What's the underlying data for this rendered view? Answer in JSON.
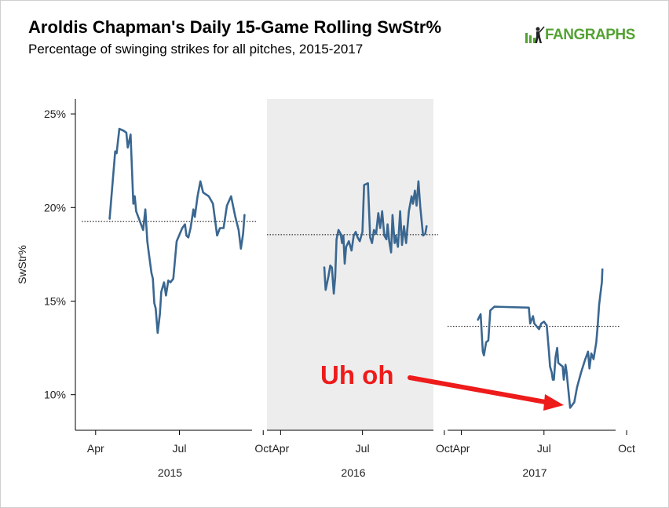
{
  "header": {
    "title": "Aroldis Chapman's Daily 15-Game Rolling SwStr%",
    "subtitle": "Percentage of swinging strikes for all pitches, 2015-2017",
    "logo_text": "FANGRAPHS"
  },
  "colors": {
    "line": "#3a6791",
    "shade": "#ededed",
    "annotation": "#ee1b1b",
    "brand": "#54a234"
  },
  "chart_data": {
    "type": "line",
    "ylabel": "SwStr%",
    "ylim": [
      8.1,
      25.8
    ],
    "yticks": [
      10,
      15,
      20,
      25
    ],
    "ytick_labels": [
      "10%",
      "15%",
      "20%",
      "25%"
    ],
    "xtick_labels": [
      "Apr",
      "Jul",
      "Oct"
    ],
    "annotation": "Uh oh",
    "panels": [
      {
        "season": "2015",
        "shaded": false,
        "average": 19.25,
        "series": [
          {
            "month": 4.5,
            "value": 19.4
          },
          {
            "month": 4.7,
            "value": 23.0
          },
          {
            "month": 4.75,
            "value": 22.9
          },
          {
            "month": 4.85,
            "value": 24.2
          },
          {
            "month": 5.0,
            "value": 24.1
          },
          {
            "month": 5.1,
            "value": 24.0
          },
          {
            "month": 5.15,
            "value": 23.2
          },
          {
            "month": 5.25,
            "value": 23.9
          },
          {
            "month": 5.35,
            "value": 20.2
          },
          {
            "month": 5.4,
            "value": 20.6
          },
          {
            "month": 5.45,
            "value": 19.8
          },
          {
            "month": 5.7,
            "value": 18.8
          },
          {
            "month": 5.78,
            "value": 19.9
          },
          {
            "month": 5.85,
            "value": 18.2
          },
          {
            "month": 5.9,
            "value": 17.6
          },
          {
            "month": 6.0,
            "value": 16.5
          },
          {
            "month": 6.05,
            "value": 16.2
          },
          {
            "month": 6.1,
            "value": 14.9
          },
          {
            "month": 6.15,
            "value": 14.6
          },
          {
            "month": 6.22,
            "value": 13.3
          },
          {
            "month": 6.3,
            "value": 14.3
          },
          {
            "month": 6.35,
            "value": 15.5
          },
          {
            "month": 6.45,
            "value": 16.0
          },
          {
            "month": 6.52,
            "value": 15.3
          },
          {
            "month": 6.6,
            "value": 16.1
          },
          {
            "month": 6.68,
            "value": 16.0
          },
          {
            "month": 6.78,
            "value": 16.2
          },
          {
            "month": 6.9,
            "value": 18.2
          },
          {
            "month": 7.1,
            "value": 18.9
          },
          {
            "month": 7.2,
            "value": 19.1
          },
          {
            "month": 7.25,
            "value": 18.5
          },
          {
            "month": 7.32,
            "value": 18.4
          },
          {
            "month": 7.4,
            "value": 18.9
          },
          {
            "month": 7.5,
            "value": 19.9
          },
          {
            "month": 7.55,
            "value": 19.5
          },
          {
            "month": 7.65,
            "value": 20.6
          },
          {
            "month": 7.75,
            "value": 21.4
          },
          {
            "month": 7.85,
            "value": 20.8
          },
          {
            "month": 8.05,
            "value": 20.6
          },
          {
            "month": 8.2,
            "value": 20.2
          },
          {
            "month": 8.35,
            "value": 18.5
          },
          {
            "month": 8.45,
            "value": 18.9
          },
          {
            "month": 8.58,
            "value": 18.9
          },
          {
            "month": 8.7,
            "value": 20.1
          },
          {
            "month": 8.85,
            "value": 20.6
          },
          {
            "month": 9.0,
            "value": 19.5
          },
          {
            "month": 9.12,
            "value": 18.8
          },
          {
            "month": 9.2,
            "value": 17.8
          },
          {
            "month": 9.28,
            "value": 18.6
          },
          {
            "month": 9.33,
            "value": 19.6
          }
        ]
      },
      {
        "season": "2016",
        "shaded": true,
        "average": 18.55,
        "series": [
          {
            "month": 5.6,
            "value": 16.8
          },
          {
            "month": 5.65,
            "value": 15.6
          },
          {
            "month": 5.75,
            "value": 16.3
          },
          {
            "month": 5.82,
            "value": 16.9
          },
          {
            "month": 5.88,
            "value": 16.8
          },
          {
            "month": 5.95,
            "value": 15.4
          },
          {
            "month": 6.0,
            "value": 16.3
          },
          {
            "month": 6.05,
            "value": 18.3
          },
          {
            "month": 6.12,
            "value": 18.8
          },
          {
            "month": 6.2,
            "value": 18.6
          },
          {
            "month": 6.25,
            "value": 18.1
          },
          {
            "month": 6.3,
            "value": 18.5
          },
          {
            "month": 6.35,
            "value": 17.0
          },
          {
            "month": 6.4,
            "value": 17.9
          },
          {
            "month": 6.5,
            "value": 18.2
          },
          {
            "month": 6.6,
            "value": 17.7
          },
          {
            "month": 6.68,
            "value": 18.5
          },
          {
            "month": 6.75,
            "value": 18.7
          },
          {
            "month": 6.82,
            "value": 18.4
          },
          {
            "month": 6.9,
            "value": 18.2
          },
          {
            "month": 7.0,
            "value": 18.7
          },
          {
            "month": 7.06,
            "value": 21.2
          },
          {
            "month": 7.2,
            "value": 21.3
          },
          {
            "month": 7.28,
            "value": 18.4
          },
          {
            "month": 7.35,
            "value": 18.1
          },
          {
            "month": 7.42,
            "value": 18.8
          },
          {
            "month": 7.5,
            "value": 18.6
          },
          {
            "month": 7.58,
            "value": 19.7
          },
          {
            "month": 7.65,
            "value": 18.9
          },
          {
            "month": 7.72,
            "value": 19.8
          },
          {
            "month": 7.8,
            "value": 18.5
          },
          {
            "month": 7.88,
            "value": 18.3
          },
          {
            "month": 7.92,
            "value": 19.1
          },
          {
            "month": 7.98,
            "value": 18.2
          },
          {
            "month": 8.05,
            "value": 17.6
          },
          {
            "month": 8.1,
            "value": 19.6
          },
          {
            "month": 8.18,
            "value": 18.1
          },
          {
            "month": 8.22,
            "value": 18.5
          },
          {
            "month": 8.3,
            "value": 17.9
          },
          {
            "month": 8.38,
            "value": 19.8
          },
          {
            "month": 8.45,
            "value": 18.0
          },
          {
            "month": 8.52,
            "value": 19.0
          },
          {
            "month": 8.6,
            "value": 18.1
          },
          {
            "month": 8.7,
            "value": 19.8
          },
          {
            "month": 8.8,
            "value": 20.6
          },
          {
            "month": 8.85,
            "value": 20.2
          },
          {
            "month": 8.92,
            "value": 20.9
          },
          {
            "month": 8.98,
            "value": 20.1
          },
          {
            "month": 9.05,
            "value": 21.4
          },
          {
            "month": 9.12,
            "value": 20.0
          },
          {
            "month": 9.22,
            "value": 18.5
          },
          {
            "month": 9.3,
            "value": 18.6
          },
          {
            "month": 9.35,
            "value": 19.0
          }
        ]
      },
      {
        "season": "2017",
        "shaded": false,
        "average": 13.65,
        "series": [
          {
            "month": 4.6,
            "value": 14.0
          },
          {
            "month": 4.7,
            "value": 14.3
          },
          {
            "month": 4.78,
            "value": 12.3
          },
          {
            "month": 4.82,
            "value": 12.1
          },
          {
            "month": 4.9,
            "value": 12.8
          },
          {
            "month": 4.98,
            "value": 12.9
          },
          {
            "month": 5.05,
            "value": 14.5
          },
          {
            "month": 5.2,
            "value": 14.7
          },
          {
            "month": 6.45,
            "value": 14.65
          },
          {
            "month": 6.5,
            "value": 13.8
          },
          {
            "month": 6.6,
            "value": 14.2
          },
          {
            "month": 6.65,
            "value": 13.8
          },
          {
            "month": 6.82,
            "value": 13.5
          },
          {
            "month": 6.9,
            "value": 13.8
          },
          {
            "month": 7.0,
            "value": 13.9
          },
          {
            "month": 7.1,
            "value": 13.7
          },
          {
            "month": 7.18,
            "value": 12.3
          },
          {
            "month": 7.22,
            "value": 11.5
          },
          {
            "month": 7.28,
            "value": 11.2
          },
          {
            "month": 7.32,
            "value": 10.8
          },
          {
            "month": 7.36,
            "value": 10.8
          },
          {
            "month": 7.42,
            "value": 12.0
          },
          {
            "month": 7.48,
            "value": 12.5
          },
          {
            "month": 7.52,
            "value": 11.7
          },
          {
            "month": 7.6,
            "value": 11.6
          },
          {
            "month": 7.68,
            "value": 11.5
          },
          {
            "month": 7.72,
            "value": 10.8
          },
          {
            "month": 7.78,
            "value": 11.6
          },
          {
            "month": 7.82,
            "value": 11.2
          },
          {
            "month": 7.86,
            "value": 10.6
          },
          {
            "month": 7.95,
            "value": 9.3
          },
          {
            "month": 8.1,
            "value": 9.6
          },
          {
            "month": 8.2,
            "value": 10.4
          },
          {
            "month": 8.35,
            "value": 11.2
          },
          {
            "month": 8.5,
            "value": 11.9
          },
          {
            "month": 8.6,
            "value": 12.3
          },
          {
            "month": 8.65,
            "value": 11.4
          },
          {
            "month": 8.72,
            "value": 12.2
          },
          {
            "month": 8.8,
            "value": 11.9
          },
          {
            "month": 8.9,
            "value": 12.8
          },
          {
            "month": 8.95,
            "value": 13.7
          },
          {
            "month": 9.0,
            "value": 14.8
          },
          {
            "month": 9.05,
            "value": 15.4
          },
          {
            "month": 9.1,
            "value": 16.0
          },
          {
            "month": 9.12,
            "value": 16.7
          }
        ]
      }
    ]
  }
}
